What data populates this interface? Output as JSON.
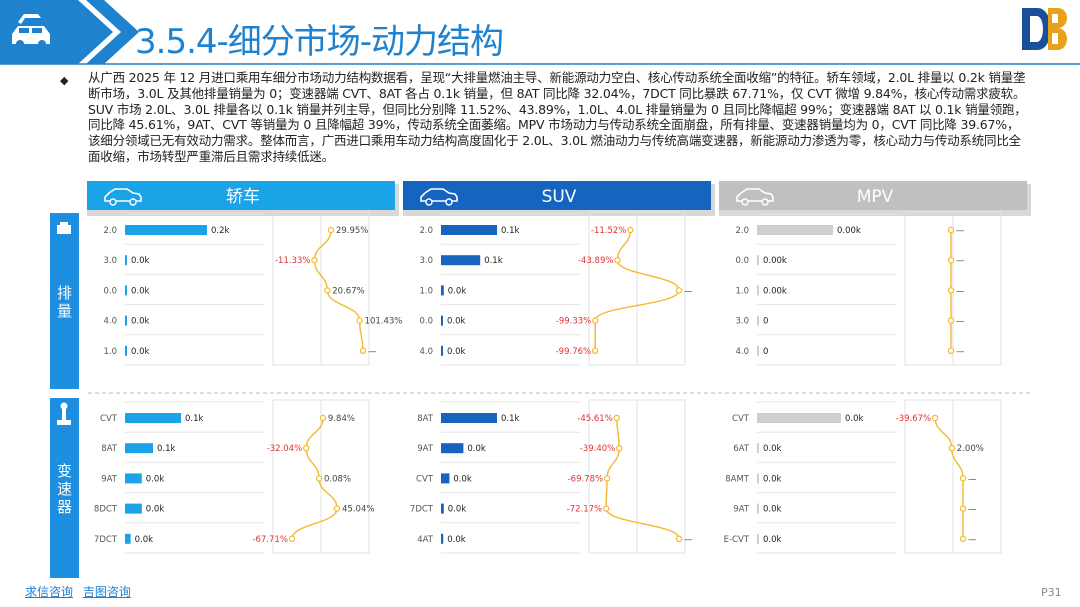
{
  "title": "3.5.4-细分市场-动力结构",
  "description": "从广西 2025 年 12 月进口乘用车细分市场动力结构数据看，呈现“大排量燃油主导、新能源动力空白、核心传动系统全面收缩”的特征。轿车领域，2.0L 排量以 0.2k 销量垄断市场，3.0L 及其他排量销量为 0；变速器端 CVT、8AT 各占 0.1k 销量，但 8AT 同比降 32.04%，7DCT 同比暴跌 67.71%，仅 CVT 微增 9.84%，核心传动需求疲软。SUV 市场 2.0L、3.0L 排量各以 0.1k 销量并列主导，但同比分别降 11.52%、43.89%，1.0L、4.0L 排量销量为 0 且同比降幅超 99%；变速器端 8AT 以 0.1k 销量领跑，同比降 45.61%，9AT、CVT 等销量为 0 且降幅超 39%，传动系统全面萎缩。MPV 市场动力与传动系统全面崩盘，所有排量、变速器销量均为 0，CVT 同比降 39.67%，该细分领域已无有效动力需求。整体而言，广西进口乘用车动力结构高度固化于 2.0L、3.0L 燃油动力与传统高端变速器，新能源动力渗透为零，核心动力与传动系统同比全面收缩，市场转型严重滞后且需求持续低迷。",
  "footer": {
    "link1": "求信咨询",
    "link2": "吉图咨询",
    "page": "P31"
  },
  "row_labels": {
    "displacement": "排量",
    "transmission": "变速器"
  },
  "segments": [
    {
      "name": "轿车",
      "color": "#1ba3e8",
      "displacement": {
        "categories": [
          "2.0",
          "3.0",
          "0.0",
          "4.0",
          "1.0"
        ],
        "sales_k": [
          0.2,
          0.0,
          0.0,
          0.0,
          0.0
        ],
        "sales_labels": [
          "0.2k",
          "0.0k",
          "0.0k",
          "0.0k",
          "0.0k"
        ],
        "yoy": [
          29.95,
          -11.33,
          20.67,
          101.43,
          null
        ],
        "yoy_labels": [
          "29.95%",
          "-11.33%",
          "20.67%",
          "101.43%",
          "—"
        ]
      },
      "transmission": {
        "categories": [
          "CVT",
          "8AT",
          "9AT",
          "8DCT",
          "7DCT"
        ],
        "sales_k": [
          0.1,
          0.05,
          0.03,
          0.03,
          0.01
        ],
        "sales_labels": [
          "0.1k",
          "0.1k",
          "0.0k",
          "0.0k",
          "0.0k"
        ],
        "yoy": [
          9.84,
          -32.04,
          0.08,
          45.04,
          -67.71
        ],
        "yoy_labels": [
          "9.84%",
          "-32.04%",
          "0.08%",
          "45.04%",
          "-67.71%"
        ]
      }
    },
    {
      "name": "SUV",
      "color": "#1565c0",
      "displacement": {
        "categories": [
          "2.0",
          "3.0",
          "1.0",
          "0.0",
          "4.0"
        ],
        "sales_k": [
          0.1,
          0.07,
          0.005,
          0.003,
          0.002
        ],
        "sales_labels": [
          "0.1k",
          "0.1k",
          "0.0k",
          "0.0k",
          "0.0k"
        ],
        "yoy": [
          -11.52,
          -43.89,
          null,
          -99.33,
          -99.76
        ],
        "yoy_labels": [
          "-11.52%",
          "-43.89%",
          "—",
          "-99.33%",
          "-99.76%"
        ]
      },
      "transmission": {
        "categories": [
          "8AT",
          "9AT",
          "CVT",
          "7DCT",
          "4AT"
        ],
        "sales_k": [
          0.1,
          0.04,
          0.015,
          0.005,
          0.004
        ],
        "sales_labels": [
          "0.1k",
          "0.0k",
          "0.0k",
          "0.0k",
          "0.0k"
        ],
        "yoy": [
          -45.61,
          -39.4,
          -69.78,
          -72.17,
          null
        ],
        "yoy_labels": [
          "-45.61%",
          "-39.40%",
          "-69.78%",
          "-72.17%",
          "—"
        ]
      }
    },
    {
      "name": "MPV",
      "color": "#c0c0c0",
      "displacement": {
        "categories": [
          "2.0",
          "0.0",
          "1.0",
          "3.0",
          "4.0"
        ],
        "sales_k": [
          0.0,
          0.0,
          0.0,
          0.0,
          0.0
        ],
        "sales_labels": [
          "0.00k",
          "0.00k",
          "0.00k",
          "0",
          "0"
        ],
        "yoy": [
          null,
          null,
          null,
          null,
          null
        ],
        "yoy_labels": [
          "—",
          "—",
          "—",
          "—",
          "—"
        ]
      },
      "transmission": {
        "categories": [
          "CVT",
          "6AT",
          "8AMT",
          "9AT",
          "E-CVT"
        ],
        "sales_k": [
          0.0,
          0.0,
          0.0,
          0.0,
          0.0
        ],
        "sales_labels": [
          "0.0k",
          "0.0k",
          "0.0k",
          "0.0k",
          "0.0k"
        ],
        "yoy": [
          -39.67,
          2.0,
          null,
          null,
          null
        ],
        "yoy_labels": [
          "-39.67%",
          "2.00%",
          "—",
          "—",
          "—"
        ]
      }
    }
  ]
}
